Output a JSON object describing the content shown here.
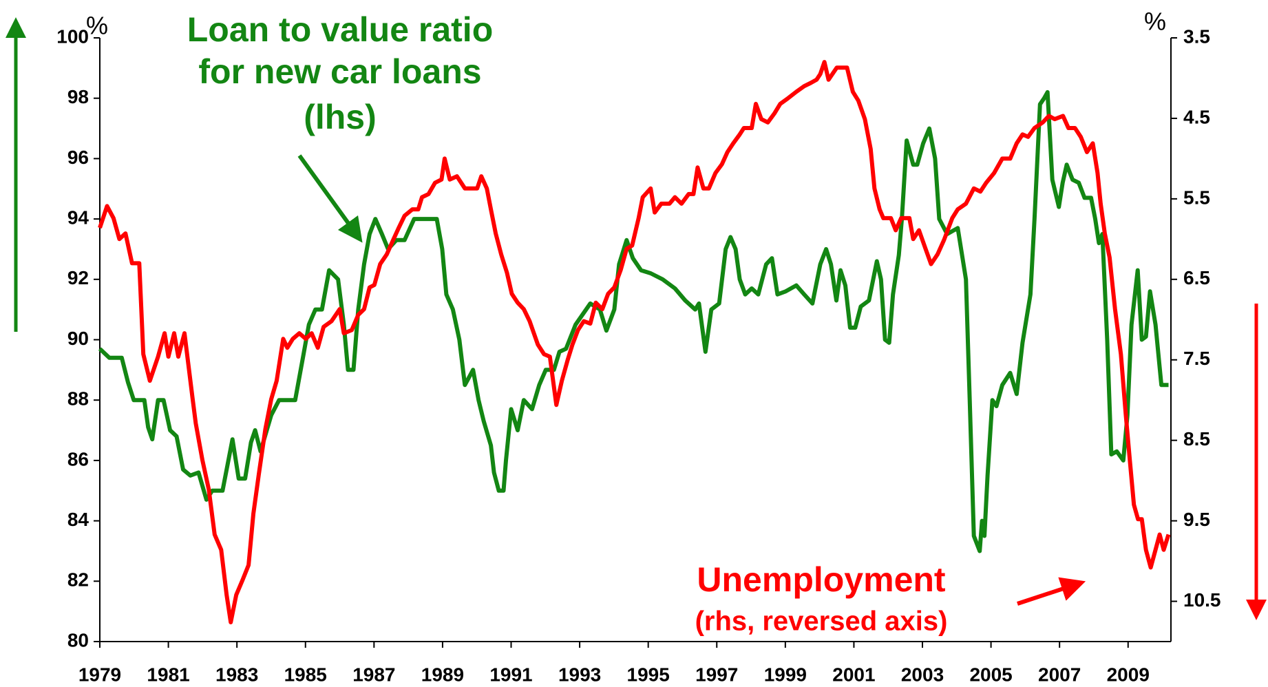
{
  "chart_data": {
    "type": "line",
    "annotations": [
      "Loan to value ratio",
      "for new car loans",
      "(lhs)",
      "Unemployment",
      "(rhs, reversed axis)"
    ],
    "y_unit": "%",
    "y2_unit": "%",
    "xlim": [
      1979,
      2010.25
    ],
    "xticks": [
      1979,
      1981,
      1983,
      1985,
      1987,
      1989,
      1991,
      1993,
      1995,
      1997,
      1999,
      2001,
      2003,
      2005,
      2007,
      2009
    ],
    "ylim": [
      80,
      100
    ],
    "yticks": [
      80,
      82,
      84,
      86,
      88,
      90,
      92,
      94,
      96,
      98,
      100
    ],
    "y2lim": [
      3.5,
      11
    ],
    "y2_reversed": true,
    "y2ticks": [
      3.5,
      4.5,
      5.5,
      6.5,
      7.5,
      8.5,
      9.5,
      10.5
    ],
    "series": [
      {
        "color": "#138613",
        "axis": "y",
        "x": [
          1979.0,
          1979.28,
          1979.64,
          1979.82,
          1979.99,
          1980.3,
          1980.41,
          1980.53,
          1980.7,
          1980.86,
          1981.05,
          1981.24,
          1981.43,
          1981.64,
          1981.88,
          1982.11,
          1982.28,
          1982.58,
          1982.87,
          1983.05,
          1983.24,
          1983.41,
          1983.53,
          1983.69,
          1984.0,
          1984.23,
          1984.7,
          1984.94,
          1985.1,
          1985.29,
          1985.48,
          1985.69,
          1985.95,
          1986.12,
          1986.24,
          1986.4,
          1986.54,
          1986.71,
          1986.87,
          1987.04,
          1987.23,
          1987.41,
          1987.65,
          1987.89,
          1988.17,
          1988.83,
          1988.99,
          1989.11,
          1989.3,
          1989.49,
          1989.65,
          1989.89,
          1990.05,
          1990.2,
          1990.41,
          1990.5,
          1990.64,
          1990.78,
          1990.85,
          1991.0,
          1991.19,
          1991.37,
          1991.61,
          1991.82,
          1992.01,
          1992.25,
          1992.41,
          1992.6,
          1992.88,
          1993.31,
          1993.59,
          1993.78,
          1994.01,
          1994.15,
          1994.37,
          1994.55,
          1994.79,
          1995.07,
          1995.42,
          1995.78,
          1996.08,
          1996.37,
          1996.48,
          1996.67,
          1996.84,
          1997.07,
          1997.26,
          1997.4,
          1997.55,
          1997.67,
          1997.83,
          1998.02,
          1998.21,
          1998.44,
          1998.61,
          1998.77,
          1999.01,
          1999.32,
          1999.55,
          1999.79,
          2000.02,
          2000.19,
          2000.33,
          2000.49,
          2000.61,
          2000.75,
          2000.89,
          2001.04,
          2001.2,
          2001.44,
          2001.67,
          2001.79,
          2001.91,
          2002.03,
          2002.14,
          2002.31,
          2002.4,
          2002.54,
          2002.73,
          2002.85,
          2003.02,
          2003.2,
          2003.37,
          2003.49,
          2003.72,
          2004.03,
          2004.27,
          2004.38,
          2004.5,
          2004.67,
          2004.74,
          2004.81,
          2004.9,
          2005.04,
          2005.16,
          2005.33,
          2005.56,
          2005.75,
          2005.92,
          2006.15,
          2006.27,
          2006.43,
          2006.55,
          2006.65,
          2006.79,
          2006.98,
          2007.09,
          2007.21,
          2007.38,
          2007.56,
          2007.73,
          2007.92,
          2008.04,
          2008.15,
          2008.25,
          2008.39,
          2008.51,
          2008.67,
          2008.86,
          2008.98,
          2009.1,
          2009.28,
          2009.4,
          2009.52,
          2009.64,
          2009.8,
          2009.97,
          2010.18
        ],
        "values": [
          89.7,
          89.4,
          89.4,
          88.6,
          88.0,
          88.0,
          87.1,
          86.7,
          88.0,
          88.0,
          87.0,
          86.8,
          85.7,
          85.5,
          85.6,
          84.7,
          85.0,
          85.0,
          86.7,
          85.4,
          85.4,
          86.6,
          87.0,
          86.3,
          87.5,
          88.0,
          88.0,
          89.5,
          90.5,
          91.0,
          91.0,
          92.3,
          92.0,
          90.5,
          89.0,
          89.0,
          91.0,
          92.5,
          93.5,
          94.0,
          93.5,
          93.0,
          93.3,
          93.3,
          94.0,
          94.0,
          93.0,
          91.5,
          91.0,
          90.0,
          88.5,
          89.0,
          88.0,
          87.3,
          86.5,
          85.6,
          85.0,
          85.0,
          86.0,
          87.7,
          87.0,
          88.0,
          87.7,
          88.5,
          89.0,
          89.0,
          89.6,
          89.7,
          90.5,
          91.2,
          91.0,
          90.3,
          91.0,
          92.5,
          93.3,
          92.7,
          92.3,
          92.2,
          92.0,
          91.7,
          91.3,
          91.0,
          91.2,
          89.6,
          91.0,
          91.2,
          93.0,
          93.4,
          93.0,
          92.0,
          91.5,
          91.7,
          91.5,
          92.5,
          92.7,
          91.5,
          91.6,
          91.8,
          91.5,
          91.2,
          92.5,
          93.0,
          92.5,
          91.3,
          92.3,
          91.8,
          90.4,
          90.4,
          91.1,
          91.3,
          92.6,
          92.0,
          90.0,
          89.9,
          91.5,
          92.8,
          94.0,
          96.6,
          95.8,
          95.8,
          96.5,
          97.0,
          96.0,
          94.0,
          93.5,
          93.7,
          92.0,
          88.0,
          83.5,
          83.0,
          84.0,
          83.5,
          85.5,
          88.0,
          87.8,
          88.5,
          88.9,
          88.2,
          89.9,
          91.5,
          94.0,
          97.8,
          98.0,
          98.2,
          95.3,
          94.4,
          95.2,
          95.8,
          95.3,
          95.2,
          94.7,
          94.7,
          94.0,
          93.2,
          93.5,
          90.0,
          86.2,
          86.3,
          86.0,
          87.5,
          90.5,
          92.3,
          90.0,
          90.1,
          91.6,
          90.5,
          88.5,
          88.5
        ]
      },
      {
        "color": "#ff0000",
        "axis": "y2",
        "x": [
          1979.0,
          1979.21,
          1979.4,
          1979.57,
          1979.75,
          1979.94,
          1980.15,
          1980.27,
          1980.46,
          1980.7,
          1980.89,
          1981.0,
          1981.17,
          1981.29,
          1981.47,
          1981.71,
          1981.8,
          1981.99,
          1982.18,
          1982.35,
          1982.54,
          1982.7,
          1982.82,
          1982.98,
          1983.17,
          1983.34,
          1983.48,
          1983.64,
          1983.83,
          1984.0,
          1984.16,
          1984.35,
          1984.47,
          1984.63,
          1984.82,
          1985.01,
          1985.18,
          1985.36,
          1985.53,
          1985.76,
          1986.0,
          1986.12,
          1986.35,
          1986.54,
          1986.71,
          1986.87,
          1987.01,
          1987.18,
          1987.37,
          1987.56,
          1987.72,
          1987.89,
          1988.12,
          1988.29,
          1988.4,
          1988.59,
          1988.78,
          1988.97,
          1989.06,
          1989.21,
          1989.42,
          1989.65,
          1990.01,
          1990.13,
          1990.29,
          1990.41,
          1990.55,
          1990.71,
          1990.88,
          1991.02,
          1991.19,
          1991.37,
          1991.54,
          1991.78,
          1991.96,
          1992.13,
          1992.32,
          1992.48,
          1992.65,
          1992.79,
          1992.95,
          1993.12,
          1993.31,
          1993.47,
          1993.66,
          1993.83,
          1994.01,
          1994.2,
          1994.37,
          1994.53,
          1994.72,
          1994.84,
          1995.07,
          1995.19,
          1995.38,
          1995.62,
          1995.78,
          1995.97,
          1996.18,
          1996.32,
          1996.44,
          1996.61,
          1996.77,
          1996.96,
          1997.15,
          1997.31,
          1997.48,
          1997.67,
          1997.79,
          1998.02,
          1998.14,
          1998.3,
          1998.49,
          1998.68,
          1998.85,
          1999.08,
          1999.32,
          1999.55,
          1999.74,
          1999.91,
          2000.02,
          2000.14,
          2000.26,
          2000.5,
          2000.8,
          2000.97,
          2001.13,
          2001.32,
          2001.49,
          2001.6,
          2001.75,
          2001.86,
          2002.08,
          2002.22,
          2002.38,
          2002.62,
          2002.73,
          2002.9,
          2003.09,
          2003.25,
          2003.44,
          2003.63,
          2003.87,
          2004.03,
          2004.27,
          2004.5,
          2004.69,
          2004.86,
          2005.09,
          2005.33,
          2005.56,
          2005.75,
          2005.92,
          2006.08,
          2006.27,
          2006.51,
          2006.69,
          2006.86,
          2007.1,
          2007.26,
          2007.45,
          2007.62,
          2007.8,
          2007.97,
          2008.11,
          2008.2,
          2008.32,
          2008.46,
          2008.62,
          2008.79,
          2008.93,
          2009.05,
          2009.17,
          2009.29,
          2009.4,
          2009.52,
          2009.66,
          2009.8,
          2009.92,
          2010.04,
          2010.18
        ],
        "values": [
          5.86,
          5.59,
          5.74,
          6.0,
          5.93,
          6.3,
          6.3,
          7.43,
          7.76,
          7.46,
          7.17,
          7.46,
          7.17,
          7.46,
          7.17,
          7.99,
          8.29,
          8.74,
          9.11,
          9.67,
          9.86,
          10.42,
          10.76,
          10.42,
          10.23,
          10.05,
          9.41,
          8.92,
          8.36,
          7.99,
          7.76,
          7.24,
          7.35,
          7.24,
          7.17,
          7.24,
          7.17,
          7.35,
          7.09,
          7.02,
          6.87,
          7.17,
          7.13,
          6.94,
          6.87,
          6.6,
          6.57,
          6.31,
          6.19,
          6.01,
          5.86,
          5.71,
          5.63,
          5.63,
          5.48,
          5.44,
          5.3,
          5.26,
          5.0,
          5.26,
          5.22,
          5.37,
          5.37,
          5.22,
          5.37,
          5.63,
          5.93,
          6.19,
          6.42,
          6.68,
          6.79,
          6.87,
          7.02,
          7.31,
          7.43,
          7.46,
          8.06,
          7.76,
          7.5,
          7.31,
          7.13,
          7.02,
          7.05,
          6.79,
          6.87,
          6.68,
          6.6,
          6.38,
          6.12,
          6.08,
          5.74,
          5.48,
          5.37,
          5.67,
          5.56,
          5.56,
          5.48,
          5.56,
          5.44,
          5.44,
          5.11,
          5.37,
          5.37,
          5.18,
          5.07,
          4.92,
          4.81,
          4.7,
          4.62,
          4.62,
          4.32,
          4.51,
          4.55,
          4.44,
          4.32,
          4.25,
          4.17,
          4.1,
          4.06,
          4.02,
          3.95,
          3.8,
          4.02,
          3.87,
          3.87,
          4.17,
          4.28,
          4.51,
          4.88,
          5.37,
          5.63,
          5.74,
          5.74,
          5.89,
          5.74,
          5.74,
          6.0,
          5.89,
          6.12,
          6.31,
          6.19,
          6.01,
          5.74,
          5.63,
          5.56,
          5.37,
          5.41,
          5.3,
          5.18,
          5.0,
          5.0,
          4.81,
          4.7,
          4.73,
          4.62,
          4.55,
          4.47,
          4.51,
          4.47,
          4.62,
          4.62,
          4.73,
          4.92,
          4.81,
          5.18,
          5.56,
          5.93,
          6.23,
          6.87,
          7.43,
          8.17,
          8.74,
          9.3,
          9.48,
          9.48,
          9.86,
          10.08,
          9.86,
          9.67,
          9.86,
          9.67
        ]
      }
    ]
  }
}
